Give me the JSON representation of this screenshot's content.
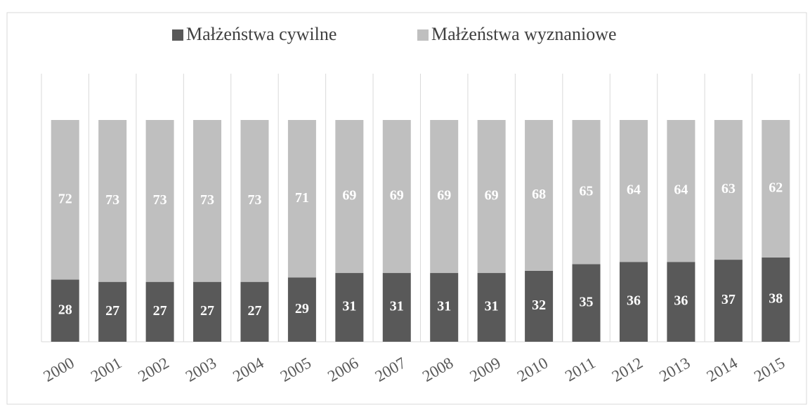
{
  "chart_data": {
    "type": "stacked_bar",
    "categories": [
      "2000",
      "2001",
      "2002",
      "2003",
      "2004",
      "2005",
      "2006",
      "2007",
      "2008",
      "2009",
      "2010",
      "2011",
      "2012",
      "2013",
      "2014",
      "2015"
    ],
    "series": [
      {
        "name": "Małżeństwa cywilne",
        "color": "#595959",
        "values": [
          28,
          27,
          27,
          27,
          27,
          29,
          31,
          31,
          31,
          31,
          32,
          35,
          36,
          36,
          37,
          38
        ]
      },
      {
        "name": "Małżeństwa wyznaniowe",
        "color": "#bfbfbf",
        "values": [
          72,
          73,
          73,
          73,
          73,
          71,
          69,
          69,
          69,
          69,
          68,
          65,
          64,
          64,
          63,
          62
        ]
      }
    ],
    "ylim": [
      0,
      100
    ],
    "legend": "top"
  }
}
